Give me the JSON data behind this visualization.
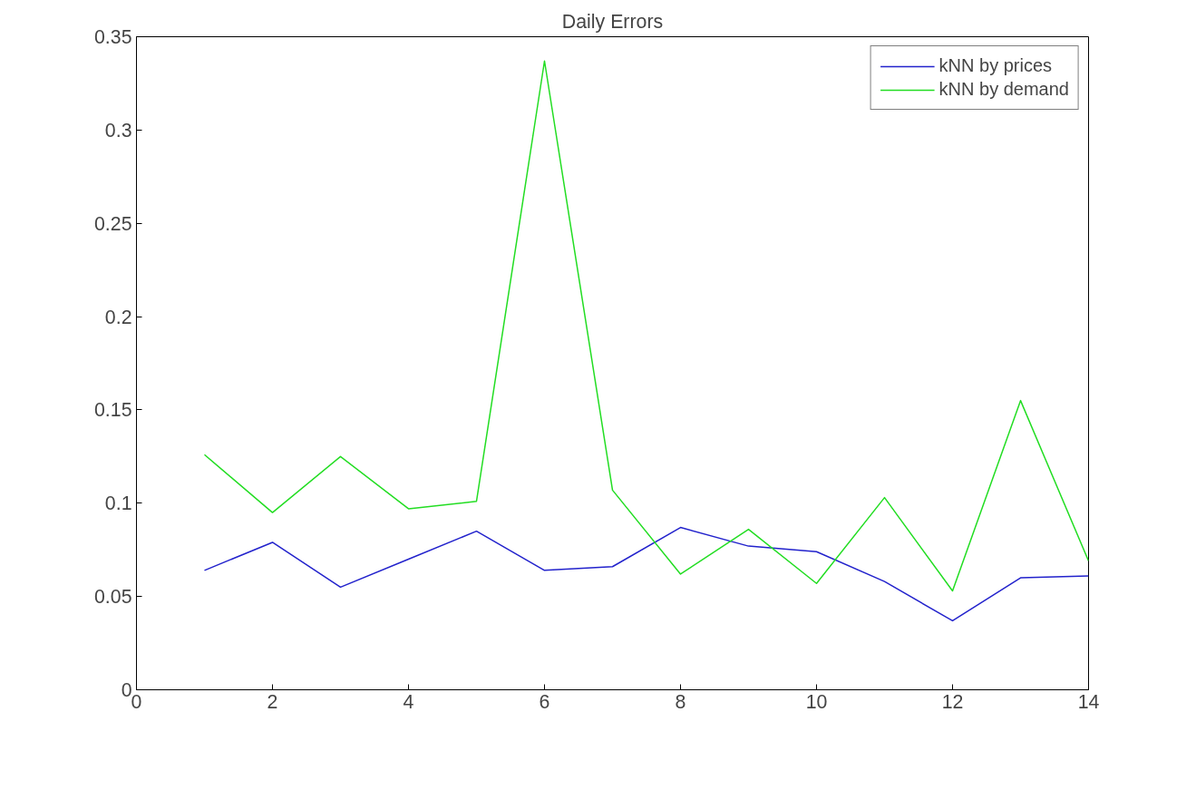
{
  "chart_data": {
    "type": "line",
    "title": "Daily Errors",
    "x": [
      1,
      2,
      3,
      4,
      5,
      6,
      7,
      8,
      9,
      10,
      11,
      12,
      13,
      14
    ],
    "series": [
      {
        "name": "kNN by prices",
        "color": "#2222cc",
        "values": [
          0.064,
          0.079,
          0.055,
          0.07,
          0.085,
          0.064,
          0.066,
          0.087,
          0.077,
          0.074,
          0.058,
          0.037,
          0.06,
          0.061
        ]
      },
      {
        "name": "kNN by demand",
        "color": "#22dd22",
        "values": [
          0.126,
          0.095,
          0.125,
          0.097,
          0.101,
          0.337,
          0.107,
          0.062,
          0.086,
          0.057,
          0.103,
          0.053,
          0.155,
          0.069
        ]
      }
    ],
    "xlim": [
      0,
      14
    ],
    "xticks": [
      0,
      2,
      4,
      6,
      8,
      10,
      12,
      14
    ],
    "ylim": [
      0,
      0.35
    ],
    "yticks": [
      0,
      0.05,
      0.1,
      0.15,
      0.2,
      0.25,
      0.3,
      0.35
    ],
    "grid": false,
    "legend": "top right",
    "line_style": "solid"
  }
}
